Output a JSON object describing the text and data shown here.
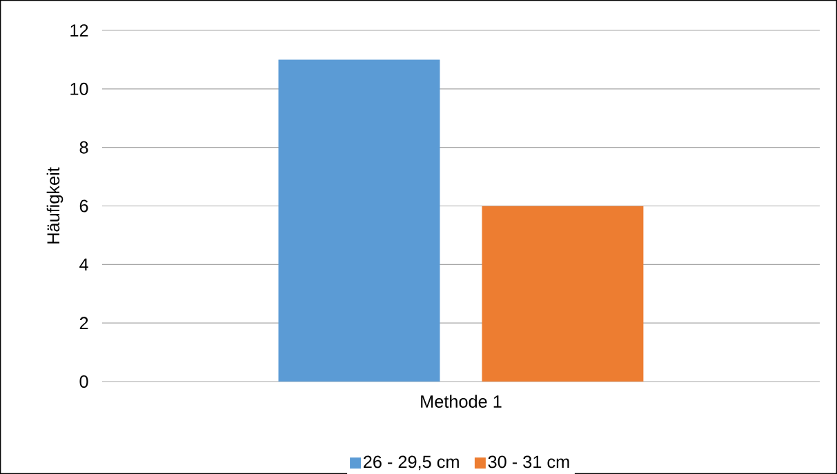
{
  "chart_data": {
    "type": "bar",
    "ylabel": "Häufigkeit",
    "categories": [
      "Methode 1"
    ],
    "series": [
      {
        "name": "26 - 29,5 cm",
        "color": "#5b9bd5",
        "values": [
          11
        ]
      },
      {
        "name": "30 - 31 cm",
        "color": "#ed7d31",
        "values": [
          6
        ]
      }
    ],
    "ylim": [
      0,
      12
    ],
    "yticks": [
      0,
      2,
      4,
      6,
      8,
      10,
      12
    ],
    "grid": "y",
    "legend": "bottom"
  }
}
